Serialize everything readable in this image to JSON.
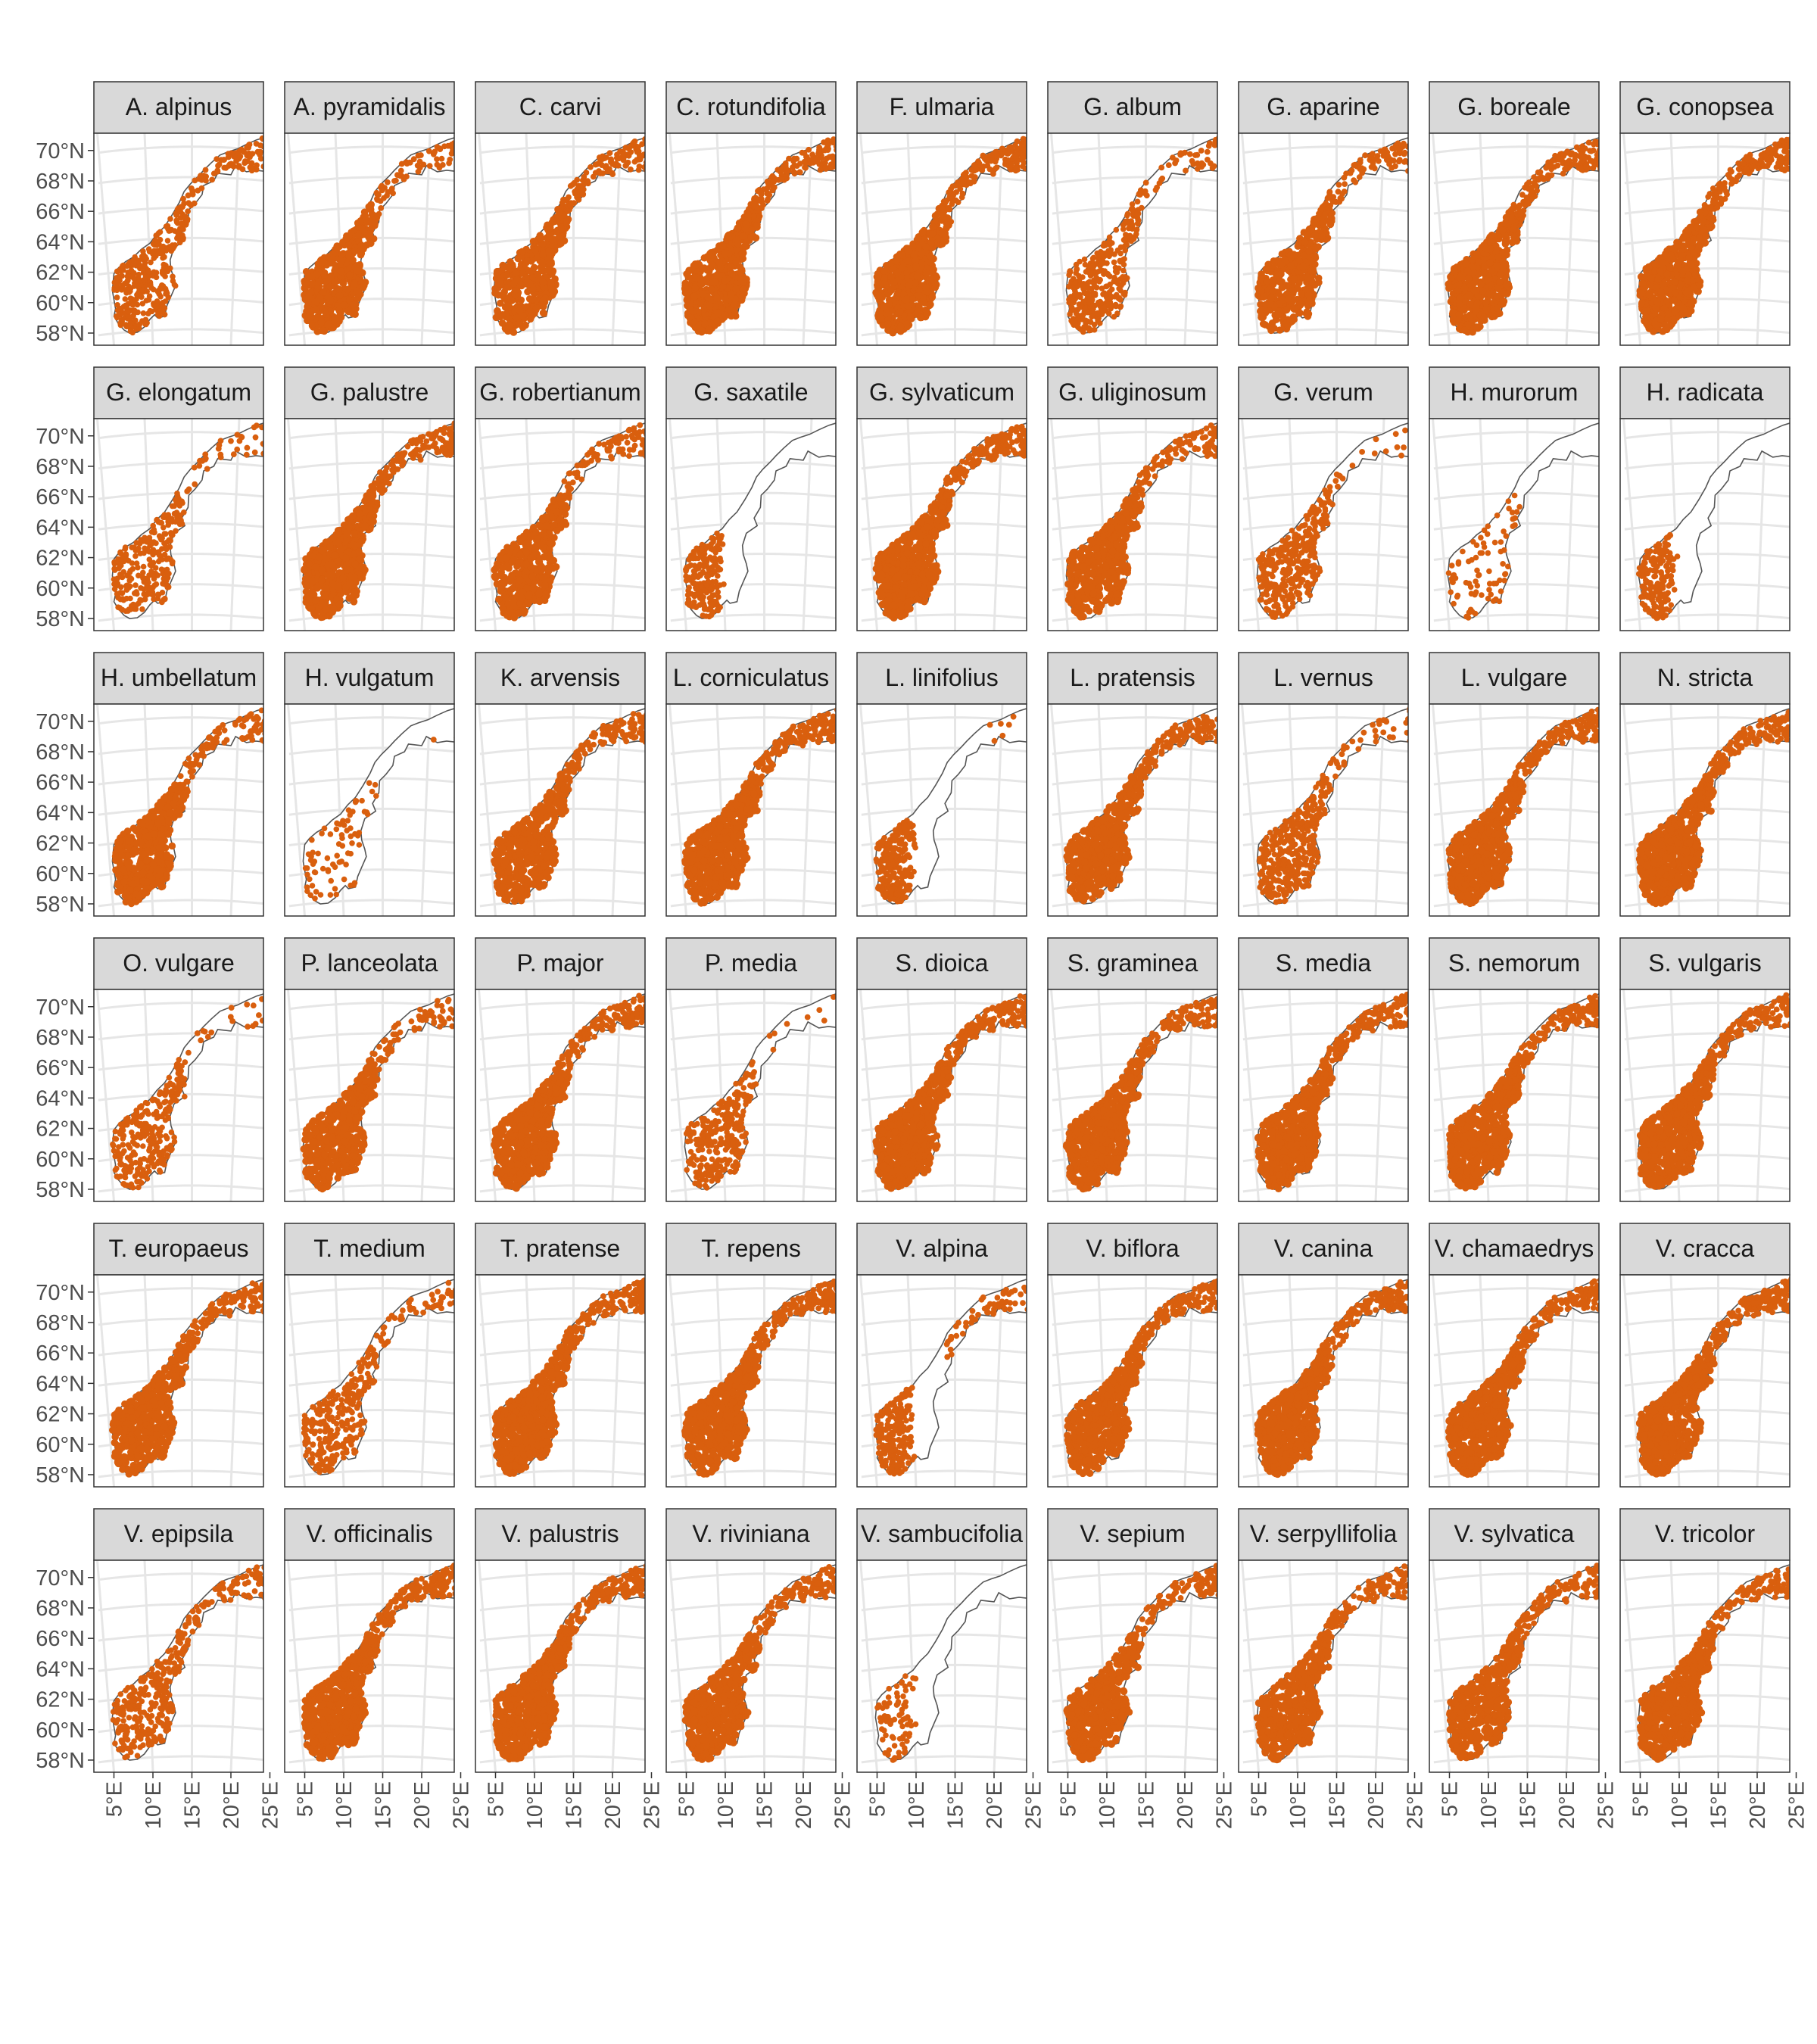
{
  "chart_data": {
    "type": "map-facets",
    "region": "Norway",
    "layout": {
      "rows": 6,
      "cols": 9
    },
    "x_axis": {
      "ticks": [
        5,
        10,
        15,
        20,
        25
      ],
      "tick_labels": [
        "5°E",
        "10°E",
        "15°E",
        "20°E",
        "25°E"
      ]
    },
    "y_axis": {
      "ticks": [
        58,
        60,
        62,
        64,
        66,
        68,
        70
      ],
      "tick_labels": [
        "58°N",
        "60°N",
        "62°N",
        "64°N",
        "66°N",
        "68°N",
        "70°N"
      ]
    },
    "grid": true,
    "point_color": "#d95f0e",
    "outline_color": "#555555",
    "strip_fill": "#d9d9d9",
    "facets": [
      {
        "label": "A. alpinus",
        "coverage": 0.55,
        "north": 1.0,
        "west_only": 0
      },
      {
        "label": "A. pyramidalis",
        "coverage": 0.85,
        "north": 0.45,
        "west_only": 0
      },
      {
        "label": "C. carvi",
        "coverage": 0.7,
        "north": 0.95,
        "west_only": 0
      },
      {
        "label": "C. rotundifolia",
        "coverage": 1.0,
        "north": 1.0,
        "west_only": 0
      },
      {
        "label": "F. ulmaria",
        "coverage": 1.0,
        "north": 1.0,
        "west_only": 0
      },
      {
        "label": "G. album",
        "coverage": 0.6,
        "north": 0.5,
        "west_only": 0
      },
      {
        "label": "G. aparine",
        "coverage": 0.65,
        "north": 0.9,
        "west_only": 0
      },
      {
        "label": "G. boreale",
        "coverage": 0.9,
        "north": 0.95,
        "west_only": 0
      },
      {
        "label": "G. conopsea",
        "coverage": 0.9,
        "north": 1.0,
        "west_only": 0
      },
      {
        "label": "G. elongatum",
        "coverage": 0.4,
        "north": 0.45,
        "west_only": 0
      },
      {
        "label": "G. palustre",
        "coverage": 0.85,
        "north": 1.0,
        "west_only": 0
      },
      {
        "label": "G. robertianum",
        "coverage": 0.7,
        "north": 0.65,
        "west_only": 0
      },
      {
        "label": "G. saxatile",
        "coverage": 0.3,
        "north": 0.0,
        "west_only": 1
      },
      {
        "label": "G. sylvaticum",
        "coverage": 1.0,
        "north": 1.0,
        "west_only": 0
      },
      {
        "label": "G. uliginosum",
        "coverage": 0.8,
        "north": 0.9,
        "west_only": 0
      },
      {
        "label": "G. verum",
        "coverage": 0.55,
        "north": 0.2,
        "west_only": 0
      },
      {
        "label": "H. murorum",
        "coverage": 0.08,
        "north": 0.0,
        "west_only": 0
      },
      {
        "label": "H. radicata",
        "coverage": 0.25,
        "north": 0.0,
        "west_only": 1
      },
      {
        "label": "H. umbellatum",
        "coverage": 0.85,
        "north": 0.6,
        "west_only": 0
      },
      {
        "label": "H. vulgatum",
        "coverage": 0.07,
        "north": 0.1,
        "west_only": 0
      },
      {
        "label": "K. arvensis",
        "coverage": 0.8,
        "north": 0.95,
        "west_only": 0
      },
      {
        "label": "L. corniculatus",
        "coverage": 0.95,
        "north": 1.0,
        "west_only": 0
      },
      {
        "label": "L. linifolius",
        "coverage": 0.4,
        "north": 0.05,
        "west_only": 1
      },
      {
        "label": "L. pratensis",
        "coverage": 0.8,
        "north": 1.0,
        "west_only": 0
      },
      {
        "label": "L. vernus",
        "coverage": 0.6,
        "north": 0.4,
        "west_only": 0
      },
      {
        "label": "L. vulgare",
        "coverage": 0.95,
        "north": 1.0,
        "west_only": 0
      },
      {
        "label": "N. stricta",
        "coverage": 1.0,
        "north": 1.0,
        "west_only": 0
      },
      {
        "label": "O. vulgare",
        "coverage": 0.45,
        "north": 0.3,
        "west_only": 0
      },
      {
        "label": "P. lanceolata",
        "coverage": 0.8,
        "north": 0.55,
        "west_only": 0
      },
      {
        "label": "P. major",
        "coverage": 0.95,
        "north": 1.0,
        "west_only": 0
      },
      {
        "label": "P. media",
        "coverage": 0.45,
        "north": 0.1,
        "west_only": 0
      },
      {
        "label": "S. dioica",
        "coverage": 1.0,
        "north": 1.0,
        "west_only": 0
      },
      {
        "label": "S. graminea",
        "coverage": 0.95,
        "north": 1.0,
        "west_only": 0
      },
      {
        "label": "S. media",
        "coverage": 0.9,
        "north": 1.0,
        "west_only": 0
      },
      {
        "label": "S. nemorum",
        "coverage": 0.95,
        "north": 1.0,
        "west_only": 0
      },
      {
        "label": "S. vulgaris",
        "coverage": 0.95,
        "north": 1.0,
        "west_only": 0
      },
      {
        "label": "T. europaeus",
        "coverage": 0.75,
        "north": 1.0,
        "west_only": 0
      },
      {
        "label": "T. medium",
        "coverage": 0.45,
        "north": 0.6,
        "west_only": 0
      },
      {
        "label": "T. pratense",
        "coverage": 1.0,
        "north": 1.0,
        "west_only": 0
      },
      {
        "label": "T. repens",
        "coverage": 1.0,
        "north": 1.0,
        "west_only": 0
      },
      {
        "label": "V. alpina",
        "coverage": 0.35,
        "north": 0.85,
        "west_only": 1
      },
      {
        "label": "V. biflora",
        "coverage": 0.8,
        "north": 1.0,
        "west_only": 0
      },
      {
        "label": "V. canina",
        "coverage": 0.95,
        "north": 1.0,
        "west_only": 0
      },
      {
        "label": "V. chamaedrys",
        "coverage": 0.95,
        "north": 0.9,
        "west_only": 0
      },
      {
        "label": "V. cracca",
        "coverage": 0.95,
        "north": 1.0,
        "west_only": 0
      },
      {
        "label": "V. epipsila",
        "coverage": 0.45,
        "north": 1.0,
        "west_only": 0
      },
      {
        "label": "V. officinalis",
        "coverage": 1.0,
        "north": 1.0,
        "west_only": 0
      },
      {
        "label": "V. palustris",
        "coverage": 1.0,
        "north": 1.0,
        "west_only": 0
      },
      {
        "label": "V. riviniana",
        "coverage": 0.85,
        "north": 0.9,
        "west_only": 0
      },
      {
        "label": "V. sambucifolia",
        "coverage": 0.08,
        "north": 0.0,
        "west_only": 1
      },
      {
        "label": "V. sepium",
        "coverage": 0.8,
        "north": 0.9,
        "west_only": 0
      },
      {
        "label": "V. serpyllifolia",
        "coverage": 0.7,
        "north": 0.9,
        "west_only": 0
      },
      {
        "label": "V. sylvatica",
        "coverage": 0.75,
        "north": 0.9,
        "west_only": 0
      },
      {
        "label": "V. tricolor",
        "coverage": 0.85,
        "north": 0.9,
        "west_only": 0
      }
    ]
  }
}
